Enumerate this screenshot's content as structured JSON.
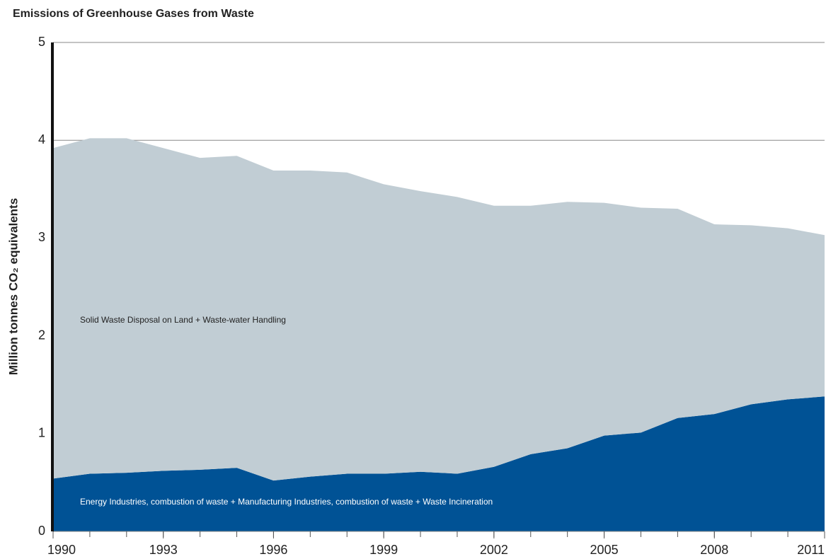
{
  "chart_data": {
    "type": "stacked-area",
    "title": "Emissions of Greenhouse Gases from Waste",
    "y_label": "Million tonnes CO₂ equivalents",
    "x": [
      1990,
      1991,
      1992,
      1993,
      1994,
      1995,
      1996,
      1997,
      1998,
      1999,
      2000,
      2001,
      2002,
      2003,
      2004,
      2005,
      2006,
      2007,
      2008,
      2009,
      2010,
      2011
    ],
    "series": [
      {
        "name": "Energy Industries, combustion of waste + Manufacturing Industries, combustion of waste + Waste Incineration",
        "color": "#005295",
        "values": [
          0.54,
          0.59,
          0.6,
          0.62,
          0.63,
          0.65,
          0.52,
          0.56,
          0.59,
          0.59,
          0.61,
          0.59,
          0.66,
          0.79,
          0.85,
          0.98,
          1.01,
          1.16,
          1.2,
          1.3,
          1.35,
          1.38
        ]
      },
      {
        "name": "Solid Waste Disposal on Land + Waste-water Handling",
        "color": "#c1cdd4",
        "values": [
          3.38,
          3.43,
          3.42,
          3.3,
          3.19,
          3.19,
          3.17,
          3.13,
          3.08,
          2.96,
          2.87,
          2.83,
          2.67,
          2.54,
          2.52,
          2.38,
          2.3,
          2.14,
          1.94,
          1.83,
          1.75,
          1.65
        ]
      }
    ],
    "xlim": [
      1990,
      2011
    ],
    "xticks": [
      1990,
      1993,
      1996,
      1999,
      2002,
      2005,
      2008,
      2011
    ],
    "ylim": [
      0,
      5
    ],
    "yticks": [
      0,
      1,
      2,
      3,
      4,
      5
    ],
    "grid": true
  }
}
